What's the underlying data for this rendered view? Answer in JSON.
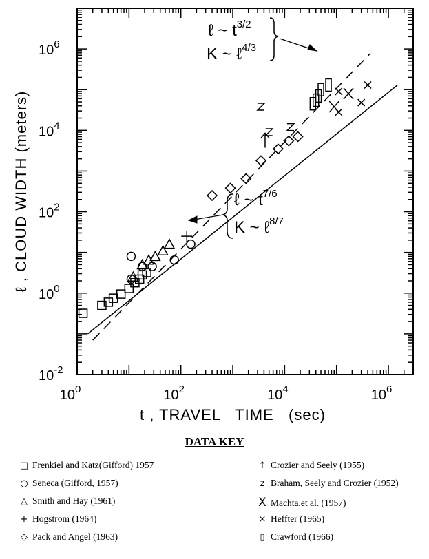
{
  "chart_data": {
    "type": "scatter",
    "title": "",
    "xlabel": "t , TRAVEL   TIME   (sec)",
    "ylabel": "ℓ , CLOUD  WIDTH  (meters)",
    "x_scale": "log",
    "y_scale": "log",
    "xlim": [
      1,
      3000000
    ],
    "ylim": [
      0.01,
      10000000
    ],
    "x_ticks": [
      {
        "value": 1,
        "base": "10",
        "exp": "0"
      },
      {
        "value": 100,
        "base": "10",
        "exp": "2"
      },
      {
        "value": 10000,
        "base": "10",
        "exp": "4"
      },
      {
        "value": 1000000,
        "base": "10",
        "exp": "6"
      }
    ],
    "y_ticks": [
      {
        "value": 0.01,
        "base": "10",
        "exp": "-2"
      },
      {
        "value": 1,
        "base": "10",
        "exp": "0"
      },
      {
        "value": 100,
        "base": "10",
        "exp": "2"
      },
      {
        "value": 10000,
        "base": "10",
        "exp": "4"
      },
      {
        "value": 1000000,
        "base": "10",
        "exp": "6"
      }
    ],
    "lines": [
      {
        "style": "solid",
        "points": [
          [
            1.6,
            0.1
          ],
          [
            1500000,
            130000
          ]
        ]
      },
      {
        "style": "dashed",
        "points": [
          [
            2,
            0.07
          ],
          [
            450000,
            780000
          ]
        ]
      }
    ],
    "annotations": [
      {
        "id": "dashed-law",
        "line1": [
          "ℓ ~ t",
          "3/2"
        ],
        "line2": [
          "K ~ ℓ",
          "4/3"
        ]
      },
      {
        "id": "solid-law",
        "line1": [
          "ℓ ~ t",
          "7/6"
        ],
        "line2": [
          "K ~ ℓ",
          "8/7"
        ]
      }
    ],
    "series": [
      {
        "name": "Frenkiel and Katz(Gifford) 1957",
        "marker": "square",
        "points": [
          [
            1.3,
            0.32
          ],
          [
            3,
            0.5
          ],
          [
            4,
            0.6
          ],
          [
            5,
            0.75
          ],
          [
            7,
            0.95
          ],
          [
            10,
            1.3
          ],
          [
            13,
            1.8
          ],
          [
            16,
            2.2
          ],
          [
            18,
            2.8
          ],
          [
            22,
            3.2
          ]
        ]
      },
      {
        "name": "Seneca (Gifford, 1957)",
        "marker": "circle",
        "points": [
          [
            11,
            8
          ],
          [
            18,
            4.5
          ],
          [
            28,
            4.5
          ],
          [
            75,
            6.5
          ],
          [
            155,
            16
          ],
          [
            11,
            2.2
          ]
        ]
      },
      {
        "name": "Smith and Hay (1961)",
        "marker": "triangle",
        "points": [
          [
            12,
            2.5
          ],
          [
            18,
            5
          ],
          [
            24,
            6.5
          ],
          [
            32,
            8
          ],
          [
            45,
            11
          ],
          [
            60,
            16
          ]
        ]
      },
      {
        "name": "Hogstrom (1964)",
        "marker": "plus",
        "points": [
          [
            130,
            25
          ]
        ]
      },
      {
        "name": "Pack and Angel (1963)",
        "marker": "diamond",
        "points": [
          [
            400,
            250
          ],
          [
            900,
            380
          ],
          [
            1800,
            650
          ],
          [
            3500,
            1800
          ],
          [
            7500,
            3500
          ],
          [
            12000,
            5500
          ],
          [
            18000,
            7000
          ]
        ]
      },
      {
        "name": "Crozier and Seely (1955)",
        "marker": "arrow",
        "points": [
          [
            4200,
            6000
          ]
        ]
      },
      {
        "name": "Braham, Seely and Crozier (1952)",
        "marker": "z",
        "points": [
          [
            3500,
            38000
          ],
          [
            5000,
            9000
          ],
          [
            13000,
            12000
          ]
        ]
      },
      {
        "name": "Machta,et al. (1957)",
        "marker": "bigx",
        "points": [
          [
            90000,
            38000
          ],
          [
            170000,
            80000
          ]
        ]
      },
      {
        "name": "Heffter (1965)",
        "marker": "x",
        "points": [
          [
            110000,
            90000
          ],
          [
            110000,
            28000
          ],
          [
            300000,
            48000
          ],
          [
            400000,
            130000
          ]
        ]
      },
      {
        "name": "Crawford (1966)",
        "marker": "rect",
        "points": [
          [
            35000,
            45000
          ],
          [
            45000,
            70000
          ],
          [
            50000,
            100000
          ],
          [
            70000,
            130000
          ],
          [
            40000,
            55000
          ]
        ]
      }
    ]
  },
  "key": {
    "title": "DATA KEY",
    "left": [
      {
        "symbol": "□",
        "label": "Frenkiel and Katz(Gifford) 1957"
      },
      {
        "symbol": "○",
        "label": "Seneca (Gifford, 1957)"
      },
      {
        "symbol": "△",
        "label": "Smith and Hay (1961)"
      },
      {
        "symbol": "+",
        "label": "Hogstrom (1964)"
      },
      {
        "symbol": "◇",
        "label": "Pack and Angel (1963)"
      }
    ],
    "right": [
      {
        "symbol": "↑",
        "label": "Crozier and Seely (1955)"
      },
      {
        "symbol": "z",
        "label": "Braham, Seely and Crozier (1952)"
      },
      {
        "symbol": "X",
        "label": "Machta,et al. (1957)"
      },
      {
        "symbol": "×",
        "label": "Heffter (1965)"
      },
      {
        "symbol": "▯",
        "label": "Crawford (1966)"
      }
    ]
  }
}
